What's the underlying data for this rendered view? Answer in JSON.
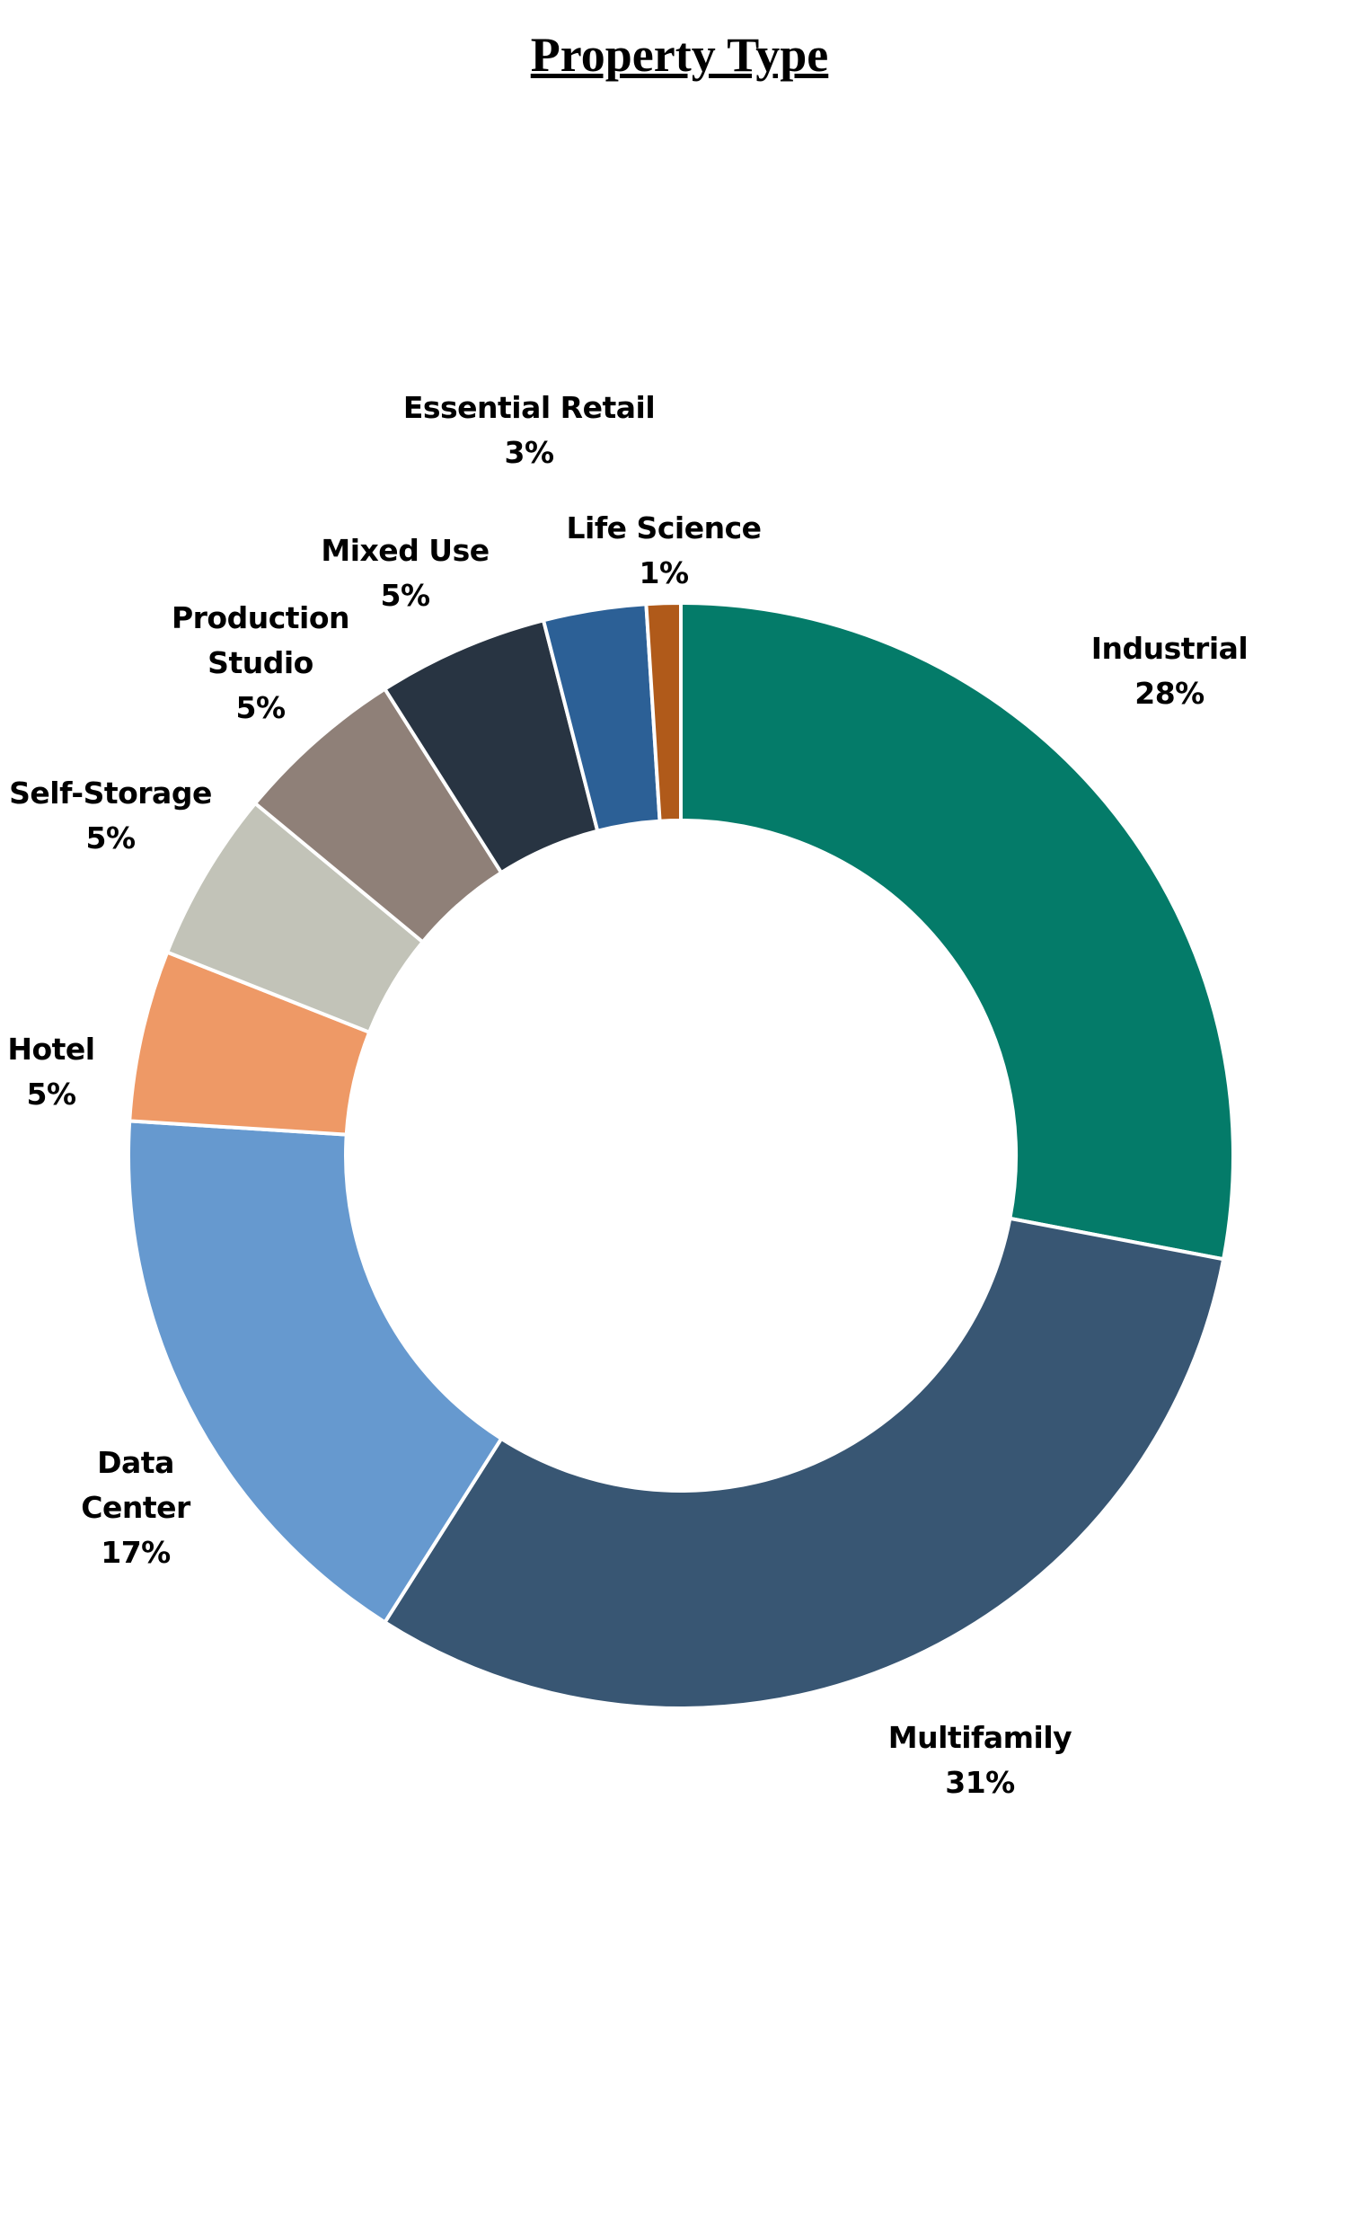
{
  "chart_data": {
    "type": "donut",
    "title": "Property Type",
    "categories": [
      "Industrial",
      "Multifamily",
      "Data Center",
      "Hotel",
      "Self-Storage",
      "Production Studio",
      "Mixed Use",
      "Essential Retail",
      "Life Science"
    ],
    "values": [
      28,
      31,
      17,
      5,
      5,
      5,
      5,
      3,
      1
    ],
    "value_labels": [
      "28%",
      "31%",
      "17%",
      "5%",
      "5%",
      "5%",
      "5%",
      "3%",
      "1%"
    ],
    "colors": [
      "#047b69",
      "#385673",
      "#6699cf",
      "#ee9966",
      "#c2c3b8",
      "#8f8078",
      "#283442",
      "#2c6096",
      "#b05a1a"
    ]
  }
}
